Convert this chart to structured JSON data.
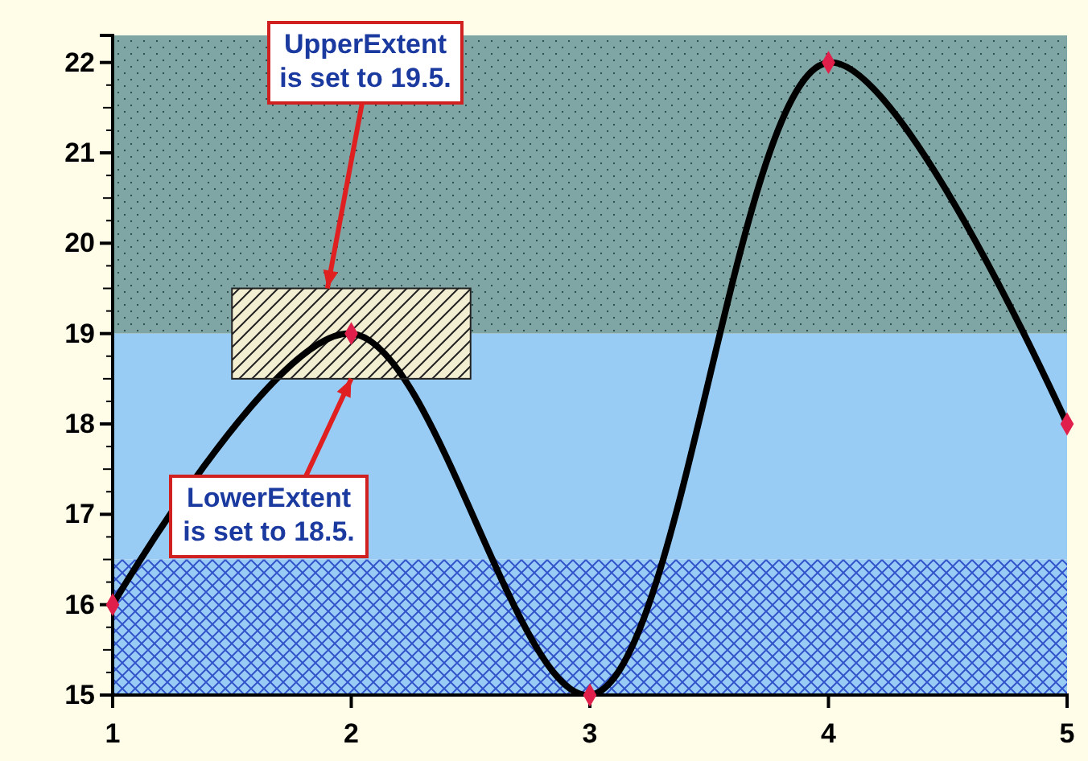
{
  "chart_data": {
    "type": "line",
    "xlim": [
      1,
      5
    ],
    "ylim": [
      15,
      22.3
    ],
    "xticks": [
      1,
      2,
      3,
      4,
      5
    ],
    "yticks": [
      15,
      16,
      17,
      18,
      19,
      20,
      21,
      22
    ],
    "grid": false,
    "marker": "diamond",
    "line_style": "solid",
    "series": [
      {
        "color": "#000000",
        "x": [
          1,
          2,
          3,
          4,
          5
        ],
        "values": [
          16,
          19,
          15,
          22,
          18
        ]
      },
      {
        "type": "bar",
        "color": "#f2eed2",
        "x": [
          2
        ],
        "base": [
          18.5
        ],
        "values": [
          1
        ]
      }
    ],
    "bands": [
      {
        "axis": "y",
        "from": 19,
        "to": 22.3,
        "color": "#7fa5a5"
      },
      {
        "axis": "y",
        "from": 16.5,
        "to": 19,
        "color": "#99ccf5"
      },
      {
        "axis": "y",
        "from": 15,
        "to": 16.5,
        "color": "#3355cc"
      }
    ],
    "annotations": [
      {
        "text": "UpperExtent is set to 19.5.",
        "x": 1.9,
        "y": 19.5
      },
      {
        "text": "LowerExtent is set to 18.5.",
        "x": 2,
        "y": 18.5
      }
    ]
  }
}
